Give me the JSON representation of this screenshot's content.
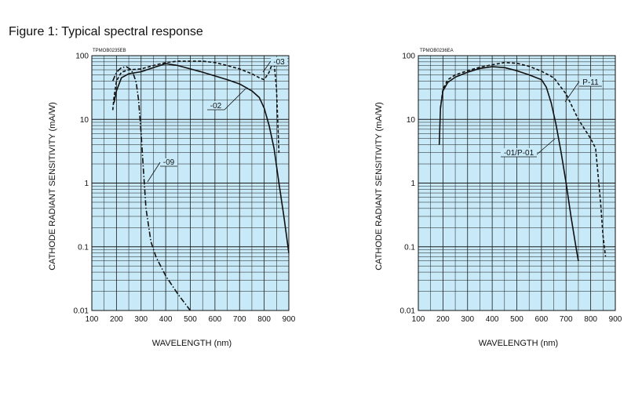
{
  "figure_title": "Figure 1: Typical spectral response",
  "chart_data": [
    {
      "type": "line",
      "code": "TPMOB0235EB",
      "xlabel": "WAVELENGTH (nm)",
      "ylabel": "CATHODE RADIANT SENSITIVITY (mA/W)",
      "xlim": [
        100,
        900
      ],
      "ylim": [
        0.01,
        100
      ],
      "yscale": "log",
      "grid": true,
      "xticks": [
        "100",
        "200",
        "300",
        "400",
        "500",
        "600",
        "700",
        "800",
        "900"
      ],
      "yticks": [
        "100",
        "10",
        "1",
        "0.1",
        "0.01"
      ],
      "series": [
        {
          "name": "-02",
          "style": "solid",
          "x": [
            190,
            200,
            220,
            250,
            300,
            350,
            400,
            450,
            500,
            550,
            600,
            650,
            700,
            750,
            780,
            800,
            820,
            840,
            860,
            880,
            900
          ],
          "y": [
            18,
            28,
            45,
            52,
            56,
            65,
            75,
            70,
            62,
            55,
            48,
            42,
            36,
            28,
            22,
            15,
            8,
            3.5,
            1,
            0.3,
            0.08
          ]
        },
        {
          "name": "-03",
          "style": "dashed",
          "x": [
            185,
            190,
            200,
            220,
            250,
            300,
            350,
            400,
            450,
            500,
            550,
            600,
            650,
            700,
            750,
            780,
            800,
            820,
            830,
            840,
            850,
            860
          ],
          "y": [
            14,
            22,
            40,
            55,
            60,
            62,
            70,
            78,
            82,
            82,
            82,
            78,
            70,
            62,
            52,
            45,
            42,
            55,
            70,
            80,
            30,
            3
          ]
        },
        {
          "name": "-09",
          "style": "dashdot",
          "x": [
            185,
            200,
            220,
            240,
            260,
            270,
            280,
            290,
            300,
            310,
            320,
            340,
            360,
            400,
            450,
            500
          ],
          "y": [
            40,
            55,
            65,
            67,
            60,
            50,
            38,
            20,
            6,
            1.5,
            0.4,
            0.12,
            0.07,
            0.035,
            0.018,
            0.01
          ]
        }
      ]
    },
    {
      "type": "line",
      "code": "TPMOB0236EA",
      "xlabel": "WAVELENGTH (nm)",
      "ylabel": "CATHODE RADIANT SENSITIVITY (mA/W)",
      "xlim": [
        100,
        900
      ],
      "ylim": [
        0.01,
        100
      ],
      "yscale": "log",
      "grid": true,
      "xticks": [
        "100",
        "200",
        "300",
        "400",
        "500",
        "600",
        "700",
        "800",
        "900"
      ],
      "yticks": [
        "100",
        "10",
        "1",
        "0.1",
        "0.01"
      ],
      "series": [
        {
          "name": "-01/P-01",
          "style": "solid",
          "x": [
            185,
            190,
            200,
            220,
            250,
            300,
            350,
            400,
            450,
            500,
            550,
            600,
            620,
            640,
            660,
            680,
            700,
            720,
            740,
            750
          ],
          "y": [
            4,
            15,
            28,
            38,
            46,
            55,
            63,
            67,
            65,
            58,
            50,
            42,
            32,
            18,
            8,
            3,
            1,
            0.3,
            0.1,
            0.06
          ]
        },
        {
          "name": "P-11",
          "style": "dashed",
          "x": [
            190,
            200,
            220,
            250,
            300,
            350,
            400,
            450,
            500,
            550,
            600,
            650,
            700,
            750,
            800,
            820,
            840,
            850,
            860
          ],
          "y": [
            15,
            30,
            42,
            50,
            58,
            66,
            72,
            78,
            76,
            68,
            57,
            45,
            25,
            10,
            5,
            3.5,
            0.5,
            0.15,
            0.07
          ]
        }
      ]
    }
  ]
}
